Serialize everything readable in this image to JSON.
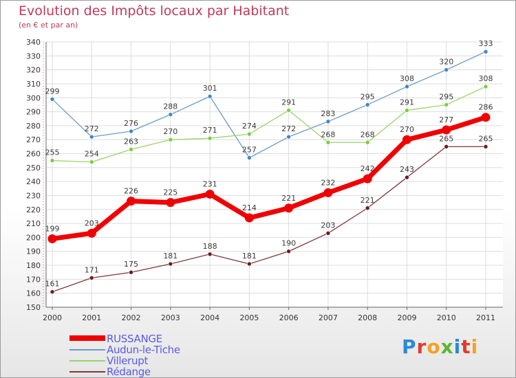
{
  "chart_data": {
    "type": "line",
    "title": "Evolution des Impôts locaux par Habitant",
    "subtitle": "(en € et par an)",
    "xlabel": "",
    "ylabel": "",
    "categories": [
      "2000",
      "2001",
      "2002",
      "2003",
      "2004",
      "2005",
      "2006",
      "2007",
      "2008",
      "2009",
      "2010",
      "2011"
    ],
    "ylim": [
      150,
      340
    ],
    "yticks": [
      150,
      160,
      170,
      180,
      190,
      200,
      210,
      220,
      230,
      240,
      250,
      260,
      270,
      280,
      290,
      300,
      310,
      320,
      330,
      340
    ],
    "grid": true,
    "legend_position": "bottom-left",
    "series": [
      {
        "name": "Audun-le-Tiche",
        "color": "#6b9bc6",
        "marker": "#3f86c7",
        "values": [
          299,
          272,
          276,
          288,
          301,
          257,
          272,
          283,
          295,
          308,
          320,
          333
        ]
      },
      {
        "name": "Villerupt",
        "color": "#98d469",
        "marker": "#7ccd3d",
        "values": [
          255,
          254,
          263,
          270,
          271,
          274,
          291,
          268,
          268,
          291,
          295,
          308
        ]
      },
      {
        "name": "Rédange",
        "color": "#7a3838",
        "marker": "#6a1c1c",
        "values": [
          161,
          171,
          175,
          181,
          188,
          181,
          190,
          203,
          221,
          243,
          265,
          265
        ]
      },
      {
        "name": "RUSSANGE",
        "color": "#f00000",
        "marker": "#f00000",
        "values": [
          199,
          203,
          226,
          225,
          231,
          214,
          221,
          232,
          242,
          270,
          277,
          286
        ]
      }
    ]
  },
  "legend": {
    "items": [
      {
        "label": "RUSSANGE",
        "color": "#f00000"
      },
      {
        "label": "Audun-le-Tiche",
        "color": "#6b9bc6"
      },
      {
        "label": "Villerupt",
        "color": "#98d469"
      },
      {
        "label": "Rédange",
        "color": "#7a3838"
      }
    ]
  },
  "logo": {
    "letters": [
      "P",
      "r",
      "o",
      "x",
      "i",
      "t",
      "i"
    ],
    "colors": [
      "#2b8ad6",
      "#e23a2c",
      "#f2a321",
      "#5cb531",
      "#2b8ad6",
      "#e23a2c",
      "#f2a321"
    ]
  }
}
